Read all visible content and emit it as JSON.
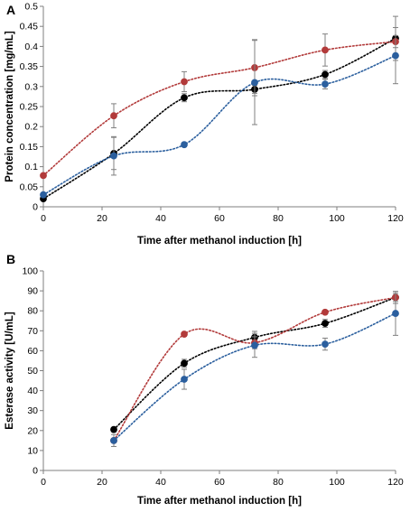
{
  "colors": {
    "black": "#000000",
    "red": "#b23a3a",
    "blue": "#2b5f9e",
    "error_bar": "#808080",
    "axis": "#7f7f7f"
  },
  "chart_data": [
    {
      "panel": "A",
      "type": "line",
      "line_style": "dotted smooth with markers and error bars",
      "xlabel": "Time after methanol induction [h]",
      "ylabel": "Protein concentration [mg/mL]",
      "xlim": [
        0,
        120
      ],
      "ylim": [
        0,
        0.5
      ],
      "xticks": [
        0,
        20,
        40,
        60,
        80,
        100,
        120
      ],
      "yticks": [
        0,
        0.05,
        0.1,
        0.15,
        0.2,
        0.25,
        0.3,
        0.35,
        0.4,
        0.45,
        0.5
      ],
      "ytick_labels": [
        "0",
        "0.05",
        "0.1",
        "0.15",
        "0.2",
        "0.25",
        "0.3",
        "0.35",
        "0.4",
        "0.45",
        "0.5"
      ],
      "grid": false,
      "legend": "none",
      "series": [
        {
          "color": "black",
          "x": [
            0,
            24,
            48,
            72,
            96,
            120
          ],
          "y": [
            0.02,
            0.133,
            0.272,
            0.293,
            0.33,
            0.42
          ],
          "err": [
            0.003,
            0.04,
            0.01,
            0.01,
            0.01,
            0.055
          ]
        },
        {
          "color": "red",
          "x": [
            0,
            24,
            48,
            72,
            96,
            120
          ],
          "y": [
            0.078,
            0.227,
            0.312,
            0.347,
            0.391,
            0.412
          ],
          "err": [
            0.004,
            0.03,
            0.025,
            0.07,
            0.04,
            0.015
          ]
        },
        {
          "color": "blue",
          "x": [
            0,
            24,
            48,
            72,
            96,
            120
          ],
          "y": [
            0.03,
            0.127,
            0.155,
            0.31,
            0.306,
            0.377
          ],
          "err": [
            0.004,
            0.048,
            0.005,
            0.105,
            0.012,
            0.07
          ]
        }
      ]
    },
    {
      "panel": "B",
      "type": "line",
      "line_style": "dotted smooth with markers and error bars",
      "xlabel": "Time after methanol induction [h]",
      "ylabel": "Esterase activity [U/mL]",
      "xlim": [
        0,
        120
      ],
      "ylim": [
        0,
        100
      ],
      "xticks": [
        0,
        20,
        40,
        60,
        80,
        100,
        120
      ],
      "yticks": [
        0,
        10,
        20,
        30,
        40,
        50,
        60,
        70,
        80,
        90,
        100
      ],
      "ytick_labels": [
        "0",
        "10",
        "20",
        "30",
        "40",
        "50",
        "60",
        "70",
        "80",
        "90",
        "100"
      ],
      "grid": false,
      "legend": "none",
      "series": [
        {
          "color": "black",
          "x": [
            24,
            48,
            72,
            96,
            120
          ],
          "y": [
            20.5,
            53.7,
            66.7,
            73.7,
            86.7
          ],
          "err": [
            1,
            2,
            3,
            2,
            2
          ]
        },
        {
          "color": "red",
          "x": [
            24,
            48,
            72,
            96,
            120
          ],
          "y": [
            15,
            68.3,
            64,
            79.3,
            86.7
          ],
          "err": [
            1,
            1,
            3,
            1,
            3
          ]
        },
        {
          "color": "blue",
          "x": [
            24,
            48,
            72,
            96,
            120
          ],
          "y": [
            15,
            45.7,
            62.7,
            63.3,
            78.7
          ],
          "err": [
            3,
            5,
            6,
            3,
            11
          ]
        }
      ]
    }
  ]
}
